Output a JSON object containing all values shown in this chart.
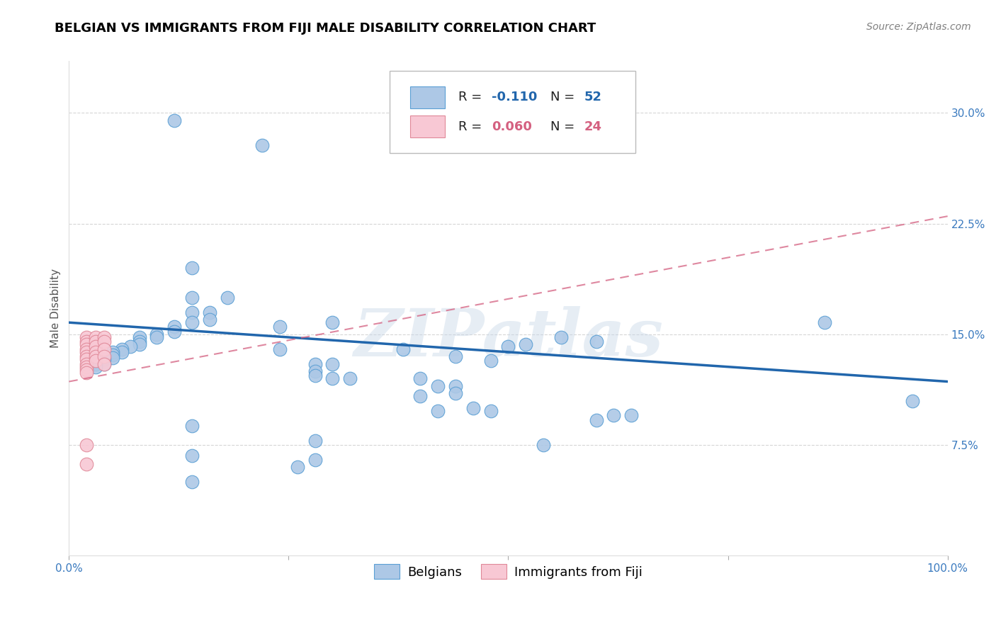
{
  "title": "BELGIAN VS IMMIGRANTS FROM FIJI MALE DISABILITY CORRELATION CHART",
  "source": "Source: ZipAtlas.com",
  "ylabel": "Male Disability",
  "xlim": [
    0.0,
    1.0
  ],
  "ylim": [
    0.0,
    0.335
  ],
  "yticks": [
    0.075,
    0.15,
    0.225,
    0.3
  ],
  "ytick_labels": [
    "7.5%",
    "15.0%",
    "22.5%",
    "30.0%"
  ],
  "xticks": [
    0.0,
    0.25,
    0.5,
    0.75,
    1.0
  ],
  "xtick_labels": [
    "0.0%",
    "",
    "",
    "",
    "100.0%"
  ],
  "background_color": "#ffffff",
  "grid_color": "#cccccc",
  "blue_color": "#adc8e6",
  "blue_edge_color": "#5a9fd4",
  "blue_line_color": "#2166ac",
  "pink_color": "#f8c8d4",
  "pink_edge_color": "#e08898",
  "pink_line_color": "#d46080",
  "blue_scatter": [
    [
      0.12,
      0.295
    ],
    [
      0.22,
      0.278
    ],
    [
      0.14,
      0.195
    ],
    [
      0.14,
      0.175
    ],
    [
      0.18,
      0.175
    ],
    [
      0.14,
      0.165
    ],
    [
      0.16,
      0.165
    ],
    [
      0.14,
      0.158
    ],
    [
      0.16,
      0.16
    ],
    [
      0.12,
      0.155
    ],
    [
      0.12,
      0.152
    ],
    [
      0.1,
      0.15
    ],
    [
      0.1,
      0.148
    ],
    [
      0.08,
      0.148
    ],
    [
      0.08,
      0.145
    ],
    [
      0.08,
      0.143
    ],
    [
      0.07,
      0.142
    ],
    [
      0.06,
      0.14
    ],
    [
      0.06,
      0.138
    ],
    [
      0.05,
      0.138
    ],
    [
      0.05,
      0.136
    ],
    [
      0.05,
      0.134
    ],
    [
      0.04,
      0.133
    ],
    [
      0.04,
      0.13
    ],
    [
      0.03,
      0.13
    ],
    [
      0.03,
      0.128
    ],
    [
      0.24,
      0.155
    ],
    [
      0.3,
      0.158
    ],
    [
      0.24,
      0.14
    ],
    [
      0.28,
      0.13
    ],
    [
      0.3,
      0.13
    ],
    [
      0.28,
      0.125
    ],
    [
      0.28,
      0.122
    ],
    [
      0.3,
      0.12
    ],
    [
      0.32,
      0.12
    ],
    [
      0.38,
      0.14
    ],
    [
      0.44,
      0.135
    ],
    [
      0.4,
      0.12
    ],
    [
      0.42,
      0.115
    ],
    [
      0.44,
      0.115
    ],
    [
      0.44,
      0.11
    ],
    [
      0.4,
      0.108
    ],
    [
      0.48,
      0.132
    ],
    [
      0.5,
      0.142
    ],
    [
      0.52,
      0.143
    ],
    [
      0.46,
      0.1
    ],
    [
      0.48,
      0.098
    ],
    [
      0.56,
      0.148
    ],
    [
      0.6,
      0.145
    ],
    [
      0.86,
      0.158
    ],
    [
      0.96,
      0.105
    ],
    [
      0.62,
      0.095
    ],
    [
      0.14,
      0.088
    ],
    [
      0.28,
      0.078
    ],
    [
      0.14,
      0.068
    ],
    [
      0.28,
      0.065
    ],
    [
      0.42,
      0.098
    ],
    [
      0.54,
      0.075
    ],
    [
      0.64,
      0.095
    ],
    [
      0.6,
      0.092
    ],
    [
      0.14,
      0.05
    ],
    [
      0.26,
      0.06
    ]
  ],
  "pink_scatter": [
    [
      0.02,
      0.148
    ],
    [
      0.02,
      0.145
    ],
    [
      0.02,
      0.143
    ],
    [
      0.02,
      0.14
    ],
    [
      0.02,
      0.138
    ],
    [
      0.02,
      0.135
    ],
    [
      0.02,
      0.133
    ],
    [
      0.02,
      0.13
    ],
    [
      0.02,
      0.128
    ],
    [
      0.02,
      0.126
    ],
    [
      0.02,
      0.124
    ],
    [
      0.03,
      0.148
    ],
    [
      0.03,
      0.145
    ],
    [
      0.03,
      0.142
    ],
    [
      0.03,
      0.138
    ],
    [
      0.03,
      0.135
    ],
    [
      0.03,
      0.132
    ],
    [
      0.04,
      0.148
    ],
    [
      0.04,
      0.145
    ],
    [
      0.04,
      0.14
    ],
    [
      0.04,
      0.135
    ],
    [
      0.04,
      0.13
    ],
    [
      0.02,
      0.075
    ],
    [
      0.02,
      0.062
    ]
  ],
  "blue_trend_x": [
    0.0,
    1.0
  ],
  "blue_trend_y": [
    0.158,
    0.118
  ],
  "pink_trend_x": [
    0.0,
    1.0
  ],
  "pink_trend_y": [
    0.118,
    0.23
  ],
  "watermark_text": "ZIPatlas",
  "title_fontsize": 13,
  "axis_label_fontsize": 11,
  "tick_fontsize": 11,
  "legend_fontsize": 13,
  "source_fontsize": 10
}
